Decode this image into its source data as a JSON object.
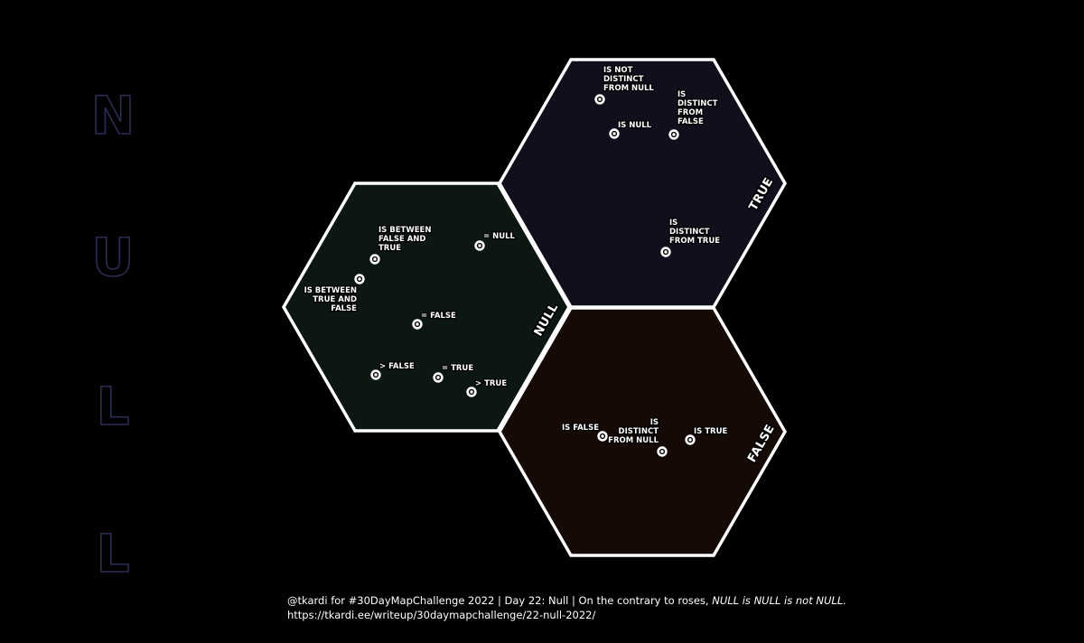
{
  "side_title": {
    "letters": [
      "N",
      "U",
      "L",
      "L"
    ],
    "color": "#2a2d55"
  },
  "regions": [
    {
      "id": "null",
      "label": "NULL",
      "fill": "#0b1710",
      "points": [
        {
          "label_lines": [
            "IS BETWEEN",
            "FALSE AND",
            "TRUE"
          ],
          "anchor": "start"
        },
        {
          "label_lines": [
            "= NULL"
          ],
          "anchor": "start"
        },
        {
          "label_lines": [
            "IS BETWEEN",
            "TRUE AND",
            "FALSE"
          ],
          "anchor": "end"
        },
        {
          "label_lines": [
            "= FALSE"
          ],
          "anchor": "start"
        },
        {
          "label_lines": [
            "> FALSE"
          ],
          "anchor": "start"
        },
        {
          "label_lines": [
            "= TRUE"
          ],
          "anchor": "start"
        },
        {
          "label_lines": [
            "> TRUE"
          ],
          "anchor": "start"
        }
      ]
    },
    {
      "id": "true",
      "label": "TRUE",
      "fill": "#110f1c",
      "points": [
        {
          "label_lines": [
            "IS NOT",
            "DISTINCT",
            "FROM NULL"
          ],
          "anchor": "start"
        },
        {
          "label_lines": [
            "IS",
            "DISTINCT",
            "FROM",
            "FALSE"
          ],
          "anchor": "start"
        },
        {
          "label_lines": [
            "IS NULL"
          ],
          "anchor": "start"
        },
        {
          "label_lines": [
            "IS",
            "DISTINCT",
            "FROM TRUE"
          ],
          "anchor": "start"
        }
      ]
    },
    {
      "id": "false",
      "label": "FALSE",
      "fill": "#150a05",
      "points": [
        {
          "label_lines": [
            "IS FALSE"
          ],
          "anchor": "end"
        },
        {
          "label_lines": [
            "IS",
            "DISTINCT",
            "FROM NULL"
          ],
          "anchor": "end"
        },
        {
          "label_lines": [
            "IS TRUE"
          ],
          "anchor": "start"
        }
      ]
    }
  ],
  "footer": {
    "line1_prefix": "@tkardi for #30DayMapChallenge 2022 | Day 22: Null | On the contrary to roses, ",
    "line1_italic": "NULL is NULL is not NULL.",
    "line2": "https://tkardi.ee/writeup/30daymapchallenge/22-null-2022/"
  }
}
